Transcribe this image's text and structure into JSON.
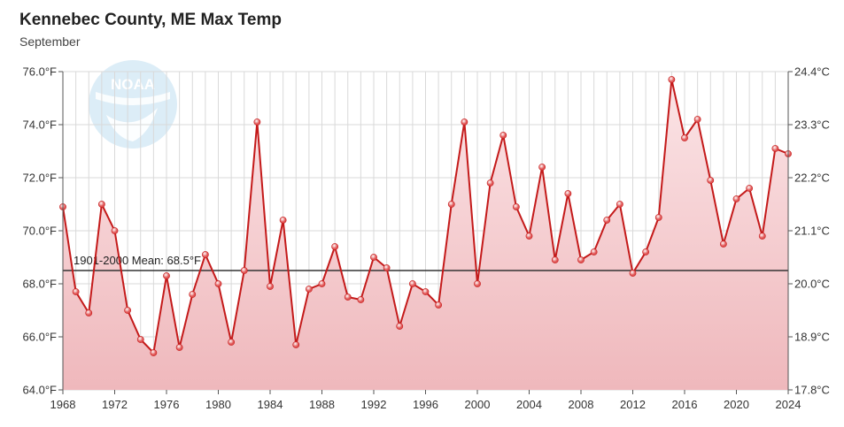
{
  "chart_data": {
    "type": "line",
    "title": "Kennebec County, ME Max Temp",
    "subtitle": "September",
    "x": [
      1968,
      1969,
      1970,
      1971,
      1972,
      1973,
      1974,
      1975,
      1976,
      1977,
      1978,
      1979,
      1980,
      1981,
      1982,
      1983,
      1984,
      1985,
      1986,
      1987,
      1988,
      1989,
      1990,
      1991,
      1992,
      1993,
      1994,
      1995,
      1996,
      1997,
      1998,
      1999,
      2000,
      2001,
      2002,
      2003,
      2004,
      2005,
      2006,
      2007,
      2008,
      2009,
      2010,
      2011,
      2012,
      2013,
      2014,
      2015,
      2016,
      2017,
      2018,
      2019,
      2020,
      2021,
      2022,
      2023,
      2024
    ],
    "series": [
      {
        "name": "Max Temp",
        "values": [
          70.9,
          67.7,
          66.9,
          71.0,
          70.0,
          67.0,
          65.9,
          65.4,
          68.3,
          65.6,
          67.6,
          69.1,
          68.0,
          65.8,
          68.5,
          74.1,
          67.9,
          70.4,
          65.7,
          67.8,
          68.0,
          69.4,
          67.5,
          67.4,
          69.0,
          68.6,
          66.4,
          68.0,
          67.7,
          67.2,
          71.0,
          74.1,
          68.0,
          71.8,
          73.6,
          70.9,
          69.8,
          72.4,
          68.9,
          71.4,
          68.9,
          69.2,
          70.4,
          71.0,
          68.4,
          69.2,
          70.5,
          75.7,
          73.5,
          74.2,
          71.9,
          69.5,
          71.2,
          71.6,
          69.8,
          73.1,
          72.9
        ]
      }
    ],
    "ylim": [
      64.0,
      76.0
    ],
    "y_ticks": [
      "64.0°F",
      "66.0°F",
      "68.0°F",
      "70.0°F",
      "72.0°F",
      "74.0°F",
      "76.0°F"
    ],
    "y2_ticks": [
      "17.8°C",
      "18.9°C",
      "20.0°C",
      "21.1°C",
      "22.2°C",
      "23.3°C",
      "24.4°C"
    ],
    "x_ticks": [
      "1968",
      "1972",
      "1976",
      "1980",
      "1984",
      "1988",
      "1992",
      "1996",
      "2000",
      "2004",
      "2008",
      "2012",
      "2016",
      "2020",
      "2024"
    ],
    "mean": 68.5,
    "mean_label": "1901-2000 Mean: 68.5°F",
    "logo_text": "NOAA",
    "colors": {
      "line": "#c41a1a",
      "marker": "#e05252",
      "fill_top": "#fbe4e6",
      "fill_bottom": "#efb8bc",
      "grid": "#d9d9d9",
      "mean_line": "#333333",
      "logo": "#dcedf7"
    }
  }
}
